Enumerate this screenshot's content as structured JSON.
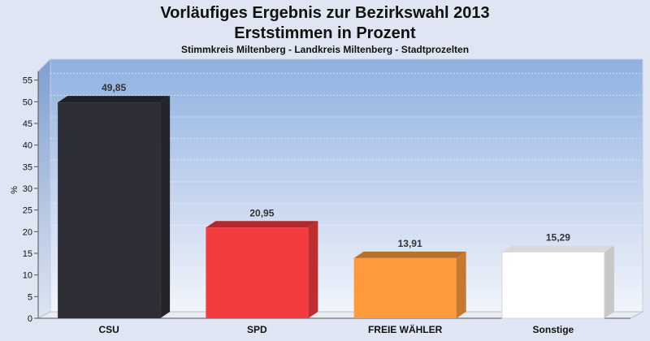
{
  "chart_data": {
    "type": "bar",
    "title": "Vorläufiges Ergebnis zur Bezirkswahl 2013",
    "subtitle": "Erststimmen in Prozent",
    "subtitle2": "Stimmkreis Miltenberg - Landkreis Miltenberg - Stadtprozelten",
    "ylabel": "%",
    "xlabel": "",
    "ylim": [
      0,
      57
    ],
    "yticks": [
      0,
      5,
      10,
      15,
      20,
      25,
      30,
      35,
      40,
      45,
      50,
      55
    ],
    "grid": true,
    "categories": [
      "CSU",
      "SPD",
      "FREIE WÄHLER",
      "Sonstige"
    ],
    "values": [
      49.85,
      20.95,
      13.91,
      15.29
    ],
    "value_labels": [
      "49,85",
      "20,95",
      "13,91",
      "15,29"
    ],
    "colors": [
      "#2e2f36",
      "#f43b3f",
      "#ff9a3c",
      "#ffffff"
    ]
  }
}
